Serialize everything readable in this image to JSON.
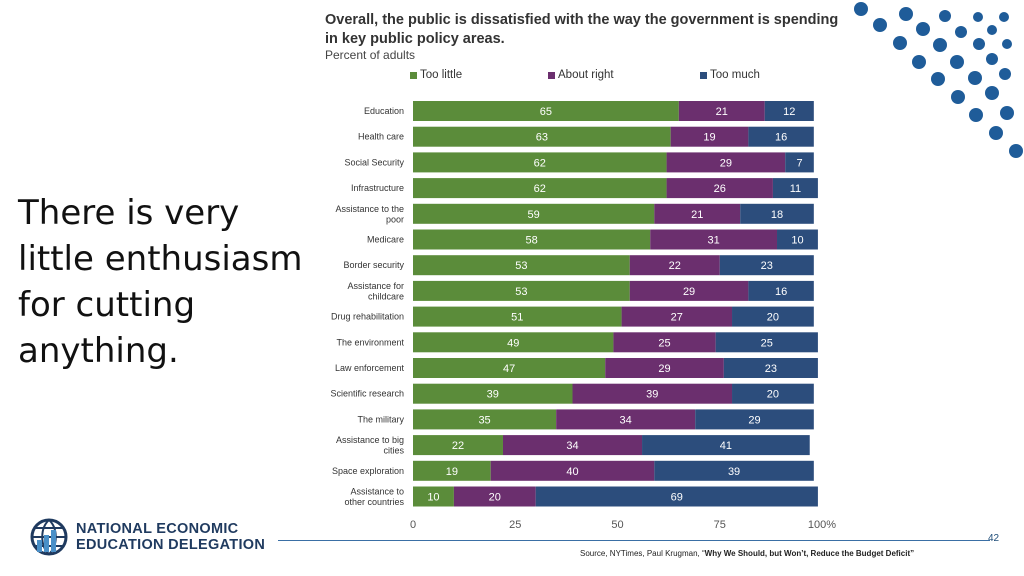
{
  "slide": {
    "headline": "There is very little enthusiasm for cutting anything.",
    "page_number": "42",
    "source_prefix": "Source, NYTimes, Paul Krugman, “",
    "source_title": "Why We Should, but Won’t, Reduce the Budget Deficit”",
    "logo_line1": "NATIONAL ECONOMIC",
    "logo_line2": "EDUCATION DELEGATION"
  },
  "colors": {
    "too_little": "#5b8c3a",
    "about_right": "#6b2f6e",
    "too_much": "#2c4d7c",
    "accent": "#1f5c99"
  },
  "chart_data": {
    "type": "bar",
    "orientation": "horizontal-stacked",
    "title": "Overall, the public is dissatisfied with the way the government is spending in key public policy areas.",
    "subtitle": "Percent of adults",
    "categories": [
      "Education",
      "Health care",
      "Social Security",
      "Infrastructure",
      "Assistance to the poor",
      "Medicare",
      "Border security",
      "Assistance for childcare",
      "Drug rehabilitation",
      "The environment",
      "Law enforcement",
      "Scientific research",
      "The military",
      "Assistance to big cities",
      "Space exploration",
      "Assistance to other countries"
    ],
    "series": [
      {
        "name": "Too little",
        "values": [
          65,
          63,
          62,
          62,
          59,
          58,
          53,
          53,
          51,
          49,
          47,
          39,
          35,
          22,
          19,
          10
        ]
      },
      {
        "name": "About right",
        "values": [
          21,
          19,
          29,
          26,
          21,
          31,
          22,
          29,
          27,
          25,
          29,
          39,
          34,
          34,
          40,
          20
        ]
      },
      {
        "name": "Too much",
        "values": [
          12,
          16,
          7,
          11,
          18,
          10,
          23,
          16,
          20,
          25,
          23,
          20,
          29,
          41,
          39,
          69
        ]
      }
    ],
    "xlim": [
      0,
      100
    ],
    "xticks": [
      "0",
      "25",
      "50",
      "75",
      "100%"
    ],
    "legend_position": "top"
  }
}
